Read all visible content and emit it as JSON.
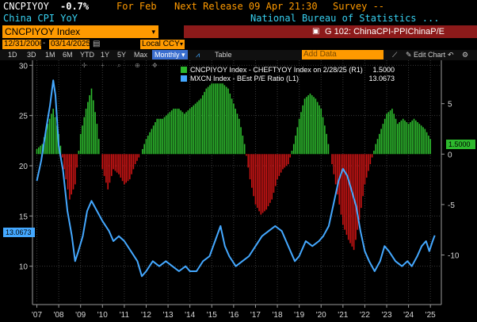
{
  "header": {
    "ticker": "CNCPIYOY",
    "change": "-0.7%",
    "period": "For Feb",
    "next_release": "Next Release 09 Apr 21:30",
    "survey": "Survey --",
    "name": "China CPI YoY",
    "source": "National Bureau of Statistics ..."
  },
  "security_bar": {
    "security": "CNCPIYOY Index",
    "chart_id": "G 102: ChinaCPI-PPIChinaP/E"
  },
  "toolbar": {
    "start_date": "12/31/2006",
    "end_date": "03/14/2025",
    "currency": "Local CCY",
    "periods": [
      "1D",
      "3D",
      "1M",
      "6M",
      "YTD",
      "1Y",
      "5Y",
      "Max"
    ],
    "frequency": "Monthly",
    "table_label": "Table",
    "add_data_placeholder": "Add Data",
    "edit_chart_label": "Edit Chart"
  },
  "legend": {
    "items": [
      {
        "label": "CNCPIYOY Index - CHEFTYOY Index on 2/28/25 (R1)",
        "value": "1.5000",
        "color": "#2db82d"
      },
      {
        "label": "MXCN Index - BEst P/E Ratio (L1)",
        "value": "13.0673",
        "color": "#44a8ff"
      }
    ]
  },
  "tags": {
    "left": "13.0673",
    "right": "1.5000"
  },
  "colors": {
    "bar_positive": "#2db82d",
    "bar_negative": "#cc1414",
    "line": "#44a8ff",
    "accent": "#ff9a00"
  },
  "chart_data": {
    "type": "bar",
    "title": "",
    "x_ticks": [
      "'07",
      "'08",
      "'09",
      "'10",
      "'11",
      "'12",
      "'13",
      "'14",
      "'15",
      "'16",
      "'17",
      "'18",
      "'19",
      "'20",
      "'21",
      "'22",
      "'23",
      "'24",
      "'25"
    ],
    "left_axis": {
      "ticks": [
        10,
        15,
        20,
        25,
        30
      ],
      "range": [
        6.5,
        30.5
      ]
    },
    "right_axis": {
      "ticks": [
        -10,
        -5,
        0,
        5
      ],
      "range": [
        -14.6,
        9.3
      ]
    },
    "x_range": [
      2006.8,
      2025.5
    ],
    "series": [
      {
        "name": "CNCPIYOY Index - CHEFTYOY Index on 2/28/25 (R1)",
        "type": "bar",
        "axis": "right",
        "points": [
          [
            2007.0,
            0.5
          ],
          [
            2007.25,
            1.0
          ],
          [
            2007.5,
            3.0
          ],
          [
            2007.75,
            4.5
          ],
          [
            2008.0,
            2.0
          ],
          [
            2008.25,
            -1.5
          ],
          [
            2008.5,
            -4.5
          ],
          [
            2008.75,
            -3.0
          ],
          [
            2009.0,
            2.0
          ],
          [
            2009.25,
            4.5
          ],
          [
            2009.5,
            6.5
          ],
          [
            2009.75,
            3.0
          ],
          [
            2010.0,
            -1.5
          ],
          [
            2010.25,
            -3.5
          ],
          [
            2010.5,
            -1.5
          ],
          [
            2010.75,
            -2.0
          ],
          [
            2011.0,
            -3.0
          ],
          [
            2011.25,
            -2.5
          ],
          [
            2011.5,
            -1.0
          ],
          [
            2011.75,
            0.0
          ],
          [
            2012.0,
            1.5
          ],
          [
            2012.25,
            2.5
          ],
          [
            2012.5,
            3.5
          ],
          [
            2012.75,
            3.5
          ],
          [
            2013.0,
            4.0
          ],
          [
            2013.25,
            4.5
          ],
          [
            2013.5,
            4.5
          ],
          [
            2013.75,
            4.0
          ],
          [
            2014.0,
            4.5
          ],
          [
            2014.25,
            5.0
          ],
          [
            2014.5,
            5.5
          ],
          [
            2014.75,
            6.5
          ],
          [
            2015.0,
            7.0
          ],
          [
            2015.25,
            7.0
          ],
          [
            2015.5,
            7.0
          ],
          [
            2015.75,
            6.5
          ],
          [
            2016.0,
            5.0
          ],
          [
            2016.25,
            3.5
          ],
          [
            2016.5,
            1.0
          ],
          [
            2016.75,
            -2.5
          ],
          [
            2017.0,
            -5.0
          ],
          [
            2017.25,
            -6.0
          ],
          [
            2017.5,
            -5.5
          ],
          [
            2017.75,
            -4.5
          ],
          [
            2018.0,
            -2.5
          ],
          [
            2018.25,
            -1.5
          ],
          [
            2018.5,
            -1.0
          ],
          [
            2018.75,
            1.0
          ],
          [
            2019.0,
            3.5
          ],
          [
            2019.25,
            5.5
          ],
          [
            2019.5,
            6.0
          ],
          [
            2019.75,
            5.5
          ],
          [
            2020.0,
            4.5
          ],
          [
            2020.25,
            2.0
          ],
          [
            2020.5,
            -1.0
          ],
          [
            2020.75,
            -4.0
          ],
          [
            2021.0,
            -7.0
          ],
          [
            2021.25,
            -8.5
          ],
          [
            2021.5,
            -9.5
          ],
          [
            2021.75,
            -6.5
          ],
          [
            2022.0,
            -3.0
          ],
          [
            2022.25,
            -1.0
          ],
          [
            2022.5,
            1.0
          ],
          [
            2022.75,
            2.5
          ],
          [
            2023.0,
            4.0
          ],
          [
            2023.25,
            4.5
          ],
          [
            2023.5,
            3.0
          ],
          [
            2023.75,
            3.5
          ],
          [
            2024.0,
            3.0
          ],
          [
            2024.25,
            3.5
          ],
          [
            2024.5,
            3.0
          ],
          [
            2024.75,
            2.5
          ],
          [
            2025.0,
            1.5
          ]
        ]
      },
      {
        "name": "MXCN Index - BEst P/E Ratio (L1)",
        "type": "line",
        "axis": "left",
        "points": [
          [
            2007.0,
            18.5
          ],
          [
            2007.2,
            20.5
          ],
          [
            2007.45,
            24.0
          ],
          [
            2007.6,
            26.0
          ],
          [
            2007.75,
            28.5
          ],
          [
            2007.85,
            27.0
          ],
          [
            2008.0,
            22.0
          ],
          [
            2008.2,
            19.5
          ],
          [
            2008.4,
            15.5
          ],
          [
            2008.6,
            13.0
          ],
          [
            2008.75,
            10.5
          ],
          [
            2008.9,
            11.5
          ],
          [
            2009.1,
            13.0
          ],
          [
            2009.3,
            15.5
          ],
          [
            2009.5,
            16.5
          ],
          [
            2009.75,
            15.5
          ],
          [
            2010.0,
            14.5
          ],
          [
            2010.3,
            13.5
          ],
          [
            2010.5,
            12.5
          ],
          [
            2010.75,
            13.0
          ],
          [
            2011.0,
            12.5
          ],
          [
            2011.3,
            11.5
          ],
          [
            2011.6,
            10.5
          ],
          [
            2011.8,
            9.0
          ],
          [
            2012.0,
            9.5
          ],
          [
            2012.3,
            10.5
          ],
          [
            2012.6,
            10.0
          ],
          [
            2012.9,
            10.5
          ],
          [
            2013.2,
            10.0
          ],
          [
            2013.5,
            9.5
          ],
          [
            2013.8,
            10.0
          ],
          [
            2014.0,
            9.5
          ],
          [
            2014.3,
            9.5
          ],
          [
            2014.6,
            10.5
          ],
          [
            2014.9,
            11.0
          ],
          [
            2015.15,
            12.5
          ],
          [
            2015.4,
            14.0
          ],
          [
            2015.6,
            12.0
          ],
          [
            2015.8,
            11.0
          ],
          [
            2016.1,
            10.0
          ],
          [
            2016.4,
            10.5
          ],
          [
            2016.7,
            11.0
          ],
          [
            2017.0,
            12.0
          ],
          [
            2017.3,
            13.0
          ],
          [
            2017.6,
            13.5
          ],
          [
            2017.9,
            14.0
          ],
          [
            2018.2,
            13.5
          ],
          [
            2018.5,
            12.0
          ],
          [
            2018.8,
            10.5
          ],
          [
            2019.0,
            11.0
          ],
          [
            2019.3,
            12.5
          ],
          [
            2019.6,
            12.0
          ],
          [
            2019.9,
            12.5
          ],
          [
            2020.1,
            13.0
          ],
          [
            2020.35,
            14.0
          ],
          [
            2020.6,
            16.5
          ],
          [
            2020.8,
            18.5
          ],
          [
            2021.0,
            19.7
          ],
          [
            2021.2,
            19.0
          ],
          [
            2021.4,
            17.5
          ],
          [
            2021.6,
            16.0
          ],
          [
            2021.8,
            13.5
          ],
          [
            2022.0,
            11.5
          ],
          [
            2022.2,
            10.5
          ],
          [
            2022.45,
            9.5
          ],
          [
            2022.7,
            10.5
          ],
          [
            2022.9,
            12.0
          ],
          [
            2023.1,
            11.5
          ],
          [
            2023.4,
            10.5
          ],
          [
            2023.7,
            10.0
          ],
          [
            2023.95,
            10.5
          ],
          [
            2024.15,
            10.0
          ],
          [
            2024.4,
            11.0
          ],
          [
            2024.6,
            12.0
          ],
          [
            2024.8,
            12.5
          ],
          [
            2024.95,
            11.5
          ],
          [
            2025.1,
            12.5
          ],
          [
            2025.2,
            13.0673
          ]
        ]
      }
    ]
  }
}
